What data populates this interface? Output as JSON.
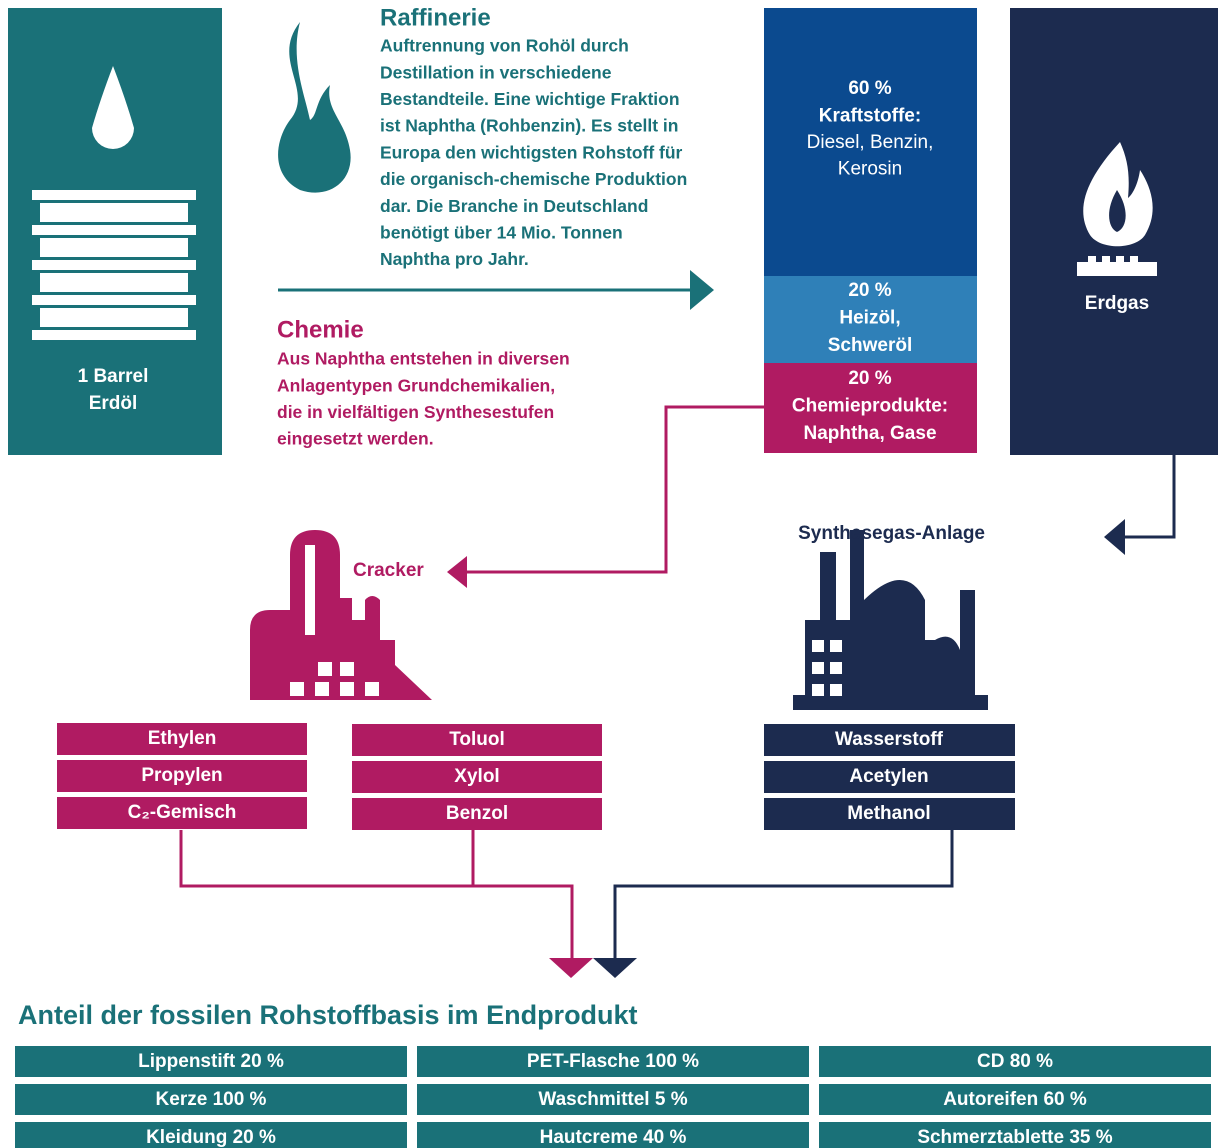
{
  "barrel": {
    "label": [
      "1 Barrel",
      "Erdöl"
    ]
  },
  "refinery": {
    "title": "Raffinerie",
    "text": [
      "Auftrennung von Rohöl durch",
      "Destillation in verschiedene",
      "Bestandteile. Eine wichtige Fraktion",
      "ist Naphtha (Rohbenzin). Es stellt in",
      "Europa den wichtigsten Rohstoff für",
      "die organisch-chemische Produktion",
      "dar. Die Branche in Deutschland",
      "benötigt über 14 Mio. Tonnen",
      "Naphtha pro Jahr."
    ]
  },
  "chemistry": {
    "title": "Chemie",
    "text": [
      "Aus Naphtha entstehen in diversen",
      "Anlagentypen Grundchemikalien,",
      "die in vielfältigen Synthesestufen",
      "eingesetzt werden."
    ]
  },
  "fractions": [
    {
      "share": "60 %",
      "heading": [
        "Kraftstoffe:"
      ],
      "detail": [
        "Diesel, Benzin,",
        "Kerosin"
      ]
    },
    {
      "share": "20 %",
      "heading": [
        "Heizöl,",
        "Schweröl"
      ],
      "detail": []
    },
    {
      "share": "20 %",
      "heading": [
        "Chemieprodukte:",
        "Naphtha, Gase"
      ],
      "detail": []
    }
  ],
  "gas": {
    "label": "Erdgas"
  },
  "cracker": {
    "label": "Cracker",
    "products": [
      [
        "Ethylen",
        "Propylen",
        "C₂-Gemisch"
      ],
      [
        "Toluol",
        "Xylol",
        "Benzol"
      ]
    ]
  },
  "synthesis": {
    "label": "Synthesegas-Anlage",
    "products": [
      "Wasserstoff",
      "Acetylen",
      "Methanol"
    ]
  },
  "endproducts": {
    "title": "Anteil der fossilen Rohstoffbasis im Endprodukt",
    "rows": [
      [
        "Lippenstift 20 %",
        "PET-Flasche 100 %",
        "CD 80 %"
      ],
      [
        "Kerze 100 %",
        "Waschmittel 5 %",
        "Autoreifen 60 %"
      ],
      [
        "Kleidung 20 %",
        "Hautcreme 40 %",
        "Schmerztablette 35 %"
      ]
    ]
  }
}
